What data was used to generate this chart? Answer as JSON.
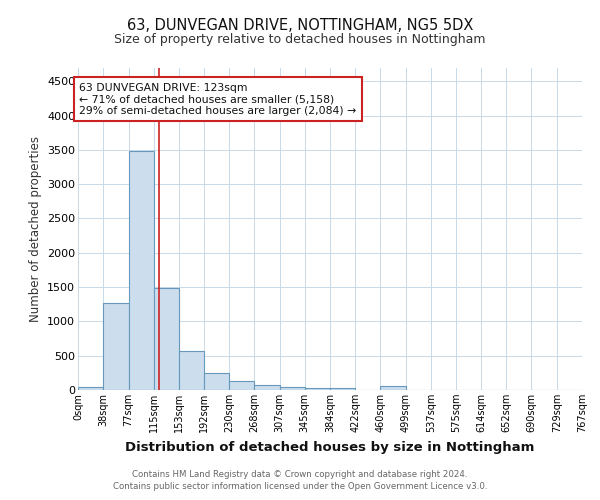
{
  "title1": "63, DUNVEGAN DRIVE, NOTTINGHAM, NG5 5DX",
  "title2": "Size of property relative to detached houses in Nottingham",
  "xlabel": "Distribution of detached houses by size in Nottingham",
  "ylabel": "Number of detached properties",
  "bar_edges": [
    0,
    38,
    77,
    115,
    153,
    192,
    230,
    268,
    307,
    345,
    384,
    422,
    460,
    499,
    537,
    575,
    614,
    652,
    690,
    729,
    767
  ],
  "bar_heights": [
    38,
    1270,
    3490,
    1480,
    570,
    250,
    125,
    75,
    45,
    35,
    35,
    0,
    55,
    0,
    0,
    0,
    0,
    0,
    0,
    0
  ],
  "bar_color": "#ccdded",
  "bar_edgecolor": "#6699bb",
  "bar_linewidth": 0.8,
  "ylim": [
    0,
    4700
  ],
  "yticks": [
    0,
    500,
    1000,
    1500,
    2000,
    2500,
    3000,
    3500,
    4000,
    4500
  ],
  "red_line_x": 123,
  "red_line_color": "#cc2222",
  "annotation_line1": "63 DUNVEGAN DRIVE: 123sqm",
  "annotation_line2": "← 71% of detached houses are smaller (5,158)",
  "annotation_line3": "29% of semi-detached houses are larger (2,084) →",
  "annotation_box_color": "#ffffff",
  "annotation_border_color": "#cc2222",
  "footer1": "Contains HM Land Registry data © Crown copyright and database right 2024.",
  "footer2": "Contains public sector information licensed under the Open Government Licence v3.0.",
  "bg_color": "#ffffff",
  "grid_color": "#c8dae8",
  "tick_labels": [
    "0sqm",
    "38sqm",
    "77sqm",
    "115sqm",
    "153sqm",
    "192sqm",
    "230sqm",
    "268sqm",
    "307sqm",
    "345sqm",
    "384sqm",
    "422sqm",
    "460sqm",
    "499sqm",
    "537sqm",
    "575sqm",
    "614sqm",
    "652sqm",
    "690sqm",
    "729sqm",
    "767sqm"
  ]
}
